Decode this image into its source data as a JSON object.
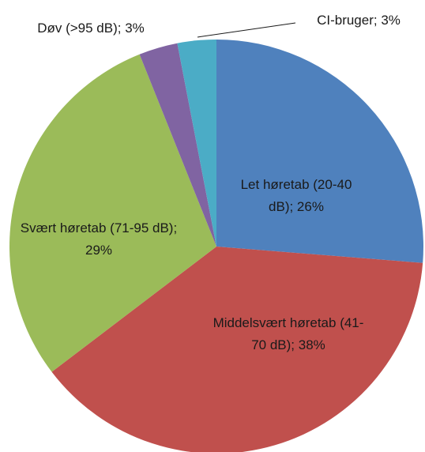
{
  "chart_data": {
    "type": "pie",
    "value_labels": [
      "Let høretab (20-40 dB); 26%",
      "Middelsvært høretab (41-70 dB); 38%",
      "Svært høretab (71-95 dB); 29%",
      "Døv (>95 dB); 3%",
      "CI-bruger; 3%"
    ],
    "values": [
      26,
      38,
      29,
      3,
      3
    ],
    "colors": [
      "#4f81bd",
      "#c0504d",
      "#9bbb59",
      "#8064a2",
      "#4bacc6"
    ]
  }
}
